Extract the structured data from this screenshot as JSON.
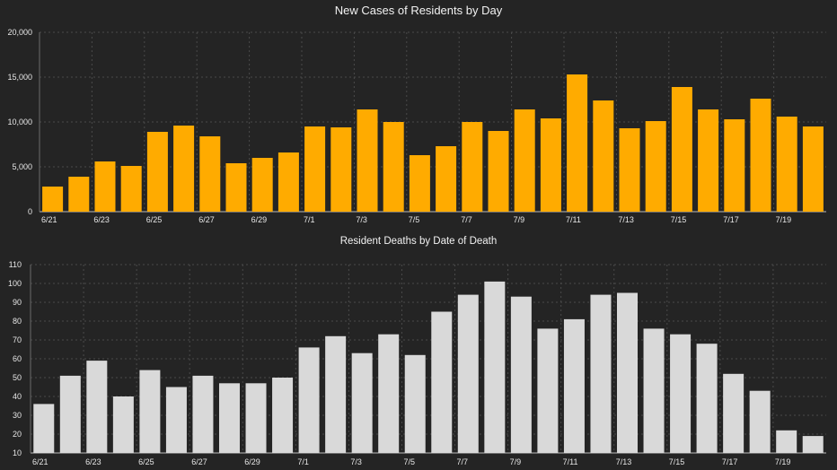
{
  "colors": {
    "background": "#242424",
    "cases_bar": "#ffab00",
    "deaths_bar": "#d9d9d9",
    "grid": "#4a4a4a"
  },
  "chart_data": [
    {
      "type": "bar",
      "title": "New Cases of Residents by Day",
      "categories": [
        "6/21",
        "6/22",
        "6/23",
        "6/24",
        "6/25",
        "6/26",
        "6/27",
        "6/28",
        "6/29",
        "6/30",
        "7/1",
        "7/2",
        "7/3",
        "7/4",
        "7/5",
        "7/6",
        "7/7",
        "7/8",
        "7/9",
        "7/10",
        "7/11",
        "7/12",
        "7/13",
        "7/14",
        "7/15",
        "7/16",
        "7/17",
        "7/18",
        "7/19",
        "7/20"
      ],
      "x_tick_labels": [
        "6/21",
        "6/23",
        "6/25",
        "6/27",
        "6/29",
        "7/1",
        "7/3",
        "7/5",
        "7/7",
        "7/9",
        "7/11",
        "7/13",
        "7/15",
        "7/17",
        "7/19"
      ],
      "series": [
        {
          "values": [
            2800,
            3900,
            5600,
            5100,
            8900,
            9600,
            8400,
            5400,
            6000,
            6600,
            9500,
            9400,
            11400,
            10000,
            6300,
            7300,
            10000,
            9000,
            11400,
            10400,
            15300,
            12400,
            9300,
            10100,
            13900,
            11400,
            10300,
            12600,
            10600,
            9500
          ]
        }
      ],
      "y_ticks": [
        "0",
        "5,000",
        "10,000",
        "15,000",
        "20,000"
      ],
      "ylim": [
        0,
        20000
      ],
      "grid": true,
      "legend": "none"
    },
    {
      "type": "bar",
      "title": "Resident Deaths by Date of Death",
      "categories": [
        "6/21",
        "6/22",
        "6/23",
        "6/24",
        "6/25",
        "6/26",
        "6/27",
        "6/28",
        "6/29",
        "6/30",
        "7/1",
        "7/2",
        "7/3",
        "7/4",
        "7/5",
        "7/6",
        "7/7",
        "7/8",
        "7/9",
        "7/10",
        "7/11",
        "7/12",
        "7/13",
        "7/14",
        "7/15",
        "7/16",
        "7/17",
        "7/18",
        "7/19",
        "7/20"
      ],
      "x_tick_labels": [
        "6/21",
        "6/23",
        "6/25",
        "6/27",
        "6/29",
        "7/1",
        "7/3",
        "7/5",
        "7/7",
        "7/9",
        "7/11",
        "7/13",
        "7/15",
        "7/17",
        "7/19"
      ],
      "series": [
        {
          "values": [
            36,
            51,
            59,
            40,
            54,
            45,
            51,
            47,
            47,
            50,
            66,
            72,
            63,
            73,
            62,
            85,
            94,
            101,
            93,
            76,
            81,
            94,
            95,
            76,
            73,
            68,
            52,
            43,
            22,
            19
          ]
        }
      ],
      "y_ticks": [
        "10",
        "20",
        "30",
        "40",
        "50",
        "60",
        "70",
        "80",
        "90",
        "100",
        "110"
      ],
      "ylim": [
        10,
        110
      ],
      "grid": true,
      "legend": "none"
    }
  ]
}
